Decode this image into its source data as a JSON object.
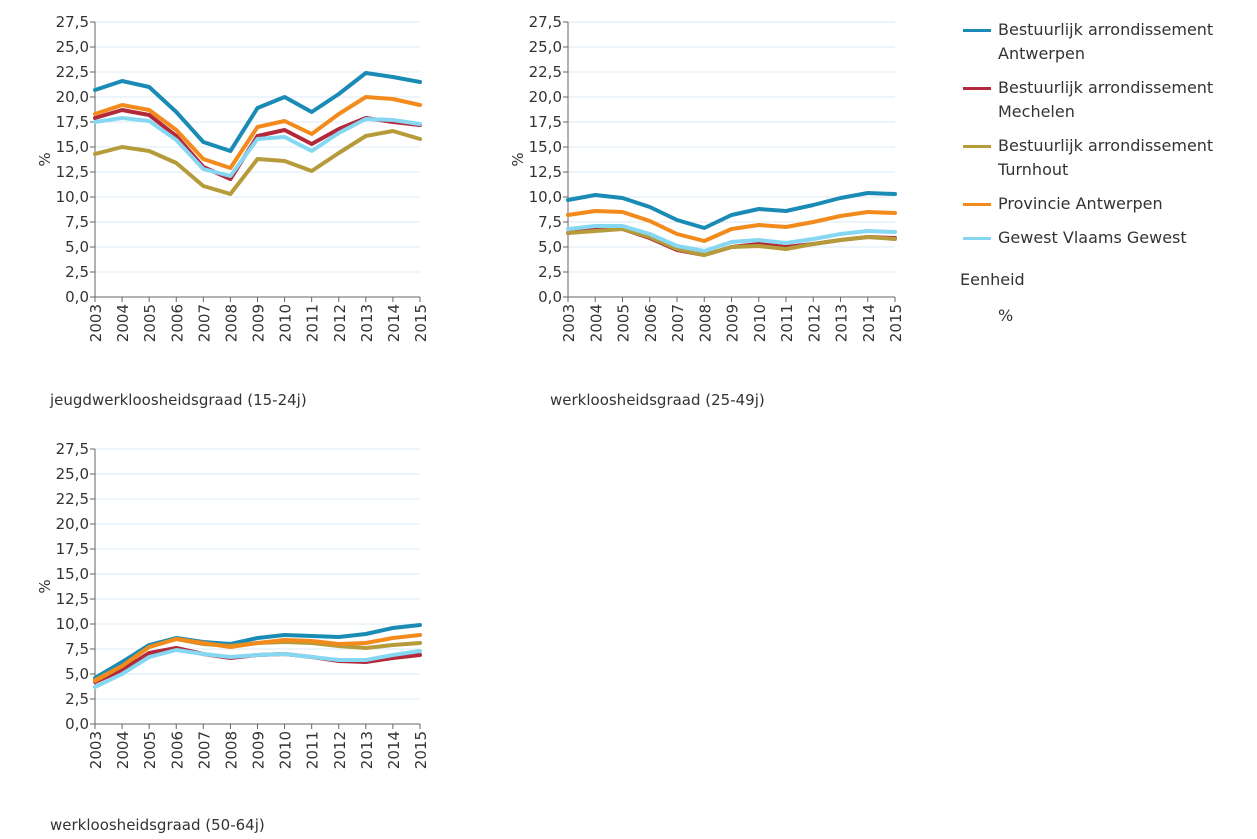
{
  "legend": {
    "series": [
      {
        "name": "Bestuurlijk arrondissement Antwerpen",
        "color": "#1a8bb5"
      },
      {
        "name": "Bestuurlijk arrondissement Mechelen",
        "color": "#b3283a"
      },
      {
        "name": "Bestuurlijk arrondissement Turnhout",
        "color": "#b59b3a"
      },
      {
        "name": "Provincie Antwerpen",
        "color": "#f28a1c"
      },
      {
        "name": "Gewest Vlaams Gewest",
        "color": "#86d8f2"
      }
    ],
    "unit_title": "Eenheid",
    "unit": "%"
  },
  "chart_data": [
    {
      "type": "line",
      "title": "jeugdwerkloosheidsgraad (15-24j)",
      "ylabel": "%",
      "categories": [
        "2003",
        "2004",
        "2005",
        "2006",
        "2007",
        "2008",
        "2009",
        "2010",
        "2011",
        "2012",
        "2013",
        "2014",
        "2015"
      ],
      "ylim": [
        0,
        27.5
      ],
      "yticks": [
        {
          "value": 0,
          "label": "0,0"
        },
        {
          "value": 2.5,
          "label": "2,5"
        },
        {
          "value": 5,
          "label": "5,0"
        },
        {
          "value": 7.5,
          "label": "7,5"
        },
        {
          "value": 10,
          "label": "10,0"
        },
        {
          "value": 12.5,
          "label": "12,5"
        },
        {
          "value": 15,
          "label": "15,0"
        },
        {
          "value": 17.5,
          "label": "17,5"
        },
        {
          "value": 20,
          "label": "20,0"
        },
        {
          "value": 22.5,
          "label": "22,5"
        },
        {
          "value": 25,
          "label": "25,0"
        },
        {
          "value": 27.5,
          "label": "27,5"
        }
      ],
      "grid": true,
      "series": [
        {
          "values": [
            20.7,
            21.6,
            21.0,
            18.5,
            15.5,
            14.6,
            18.9,
            20.0,
            18.5,
            20.3,
            22.4,
            22.0,
            21.5
          ]
        },
        {
          "values": [
            17.9,
            18.7,
            18.2,
            16.1,
            13.0,
            11.8,
            16.1,
            16.7,
            15.3,
            16.8,
            17.9,
            17.5,
            17.2
          ]
        },
        {
          "values": [
            14.3,
            15.0,
            14.6,
            13.4,
            11.1,
            10.3,
            13.8,
            13.6,
            12.6,
            14.4,
            16.1,
            16.6,
            15.8
          ]
        },
        {
          "values": [
            18.3,
            19.2,
            18.7,
            16.7,
            13.8,
            12.9,
            17.0,
            17.6,
            16.3,
            18.3,
            20.0,
            19.8,
            19.2
          ]
        },
        {
          "values": [
            17.5,
            17.9,
            17.6,
            15.7,
            12.8,
            12.1,
            15.8,
            16.0,
            14.6,
            16.4,
            17.8,
            17.7,
            17.3
          ]
        }
      ]
    },
    {
      "type": "line",
      "title": "werkloosheidsgraad (25-49j)",
      "ylabel": "%",
      "categories": [
        "2003",
        "2004",
        "2005",
        "2006",
        "2007",
        "2008",
        "2009",
        "2010",
        "2011",
        "2012",
        "2013",
        "2014",
        "2015"
      ],
      "ylim": [
        0,
        27.5
      ],
      "yticks": [
        {
          "value": 0,
          "label": "0,0"
        },
        {
          "value": 2.5,
          "label": "2,5"
        },
        {
          "value": 5,
          "label": "5,0"
        },
        {
          "value": 7.5,
          "label": "7,5"
        },
        {
          "value": 10,
          "label": "10,0"
        },
        {
          "value": 12.5,
          "label": "12,5"
        },
        {
          "value": 15,
          "label": "15,0"
        },
        {
          "value": 17.5,
          "label": "17,5"
        },
        {
          "value": 20,
          "label": "20,0"
        },
        {
          "value": 22.5,
          "label": "22,5"
        },
        {
          "value": 25,
          "label": "25,0"
        },
        {
          "value": 27.5,
          "label": "27,5"
        }
      ],
      "grid": true,
      "series": [
        {
          "values": [
            9.7,
            10.2,
            9.9,
            9.0,
            7.7,
            6.9,
            8.2,
            8.8,
            8.6,
            9.2,
            9.9,
            10.4,
            10.3
          ]
        },
        {
          "values": [
            6.4,
            6.8,
            6.8,
            5.9,
            4.7,
            4.2,
            5.0,
            5.3,
            5.0,
            5.3,
            5.7,
            6.0,
            5.9
          ]
        },
        {
          "values": [
            6.4,
            6.6,
            6.8,
            6.0,
            4.8,
            4.2,
            5.0,
            5.1,
            4.8,
            5.3,
            5.7,
            6.0,
            5.8
          ]
        },
        {
          "values": [
            8.2,
            8.6,
            8.5,
            7.6,
            6.3,
            5.6,
            6.8,
            7.2,
            7.0,
            7.5,
            8.1,
            8.5,
            8.4
          ]
        },
        {
          "values": [
            6.8,
            7.1,
            7.1,
            6.3,
            5.1,
            4.6,
            5.5,
            5.7,
            5.4,
            5.8,
            6.3,
            6.6,
            6.5
          ]
        }
      ]
    },
    {
      "type": "line",
      "title": "werkloosheidsgraad (50-64j)",
      "ylabel": "%",
      "categories": [
        "2003",
        "2004",
        "2005",
        "2006",
        "2007",
        "2008",
        "2009",
        "2010",
        "2011",
        "2012",
        "2013",
        "2014",
        "2015"
      ],
      "ylim": [
        0,
        27.5
      ],
      "yticks": [
        {
          "value": 0,
          "label": "0,0"
        },
        {
          "value": 2.5,
          "label": "2,5"
        },
        {
          "value": 5,
          "label": "5,0"
        },
        {
          "value": 7.5,
          "label": "7,5"
        },
        {
          "value": 10,
          "label": "10,0"
        },
        {
          "value": 12.5,
          "label": "12,5"
        },
        {
          "value": 15,
          "label": "15,0"
        },
        {
          "value": 17.5,
          "label": "17,5"
        },
        {
          "value": 20,
          "label": "20,0"
        },
        {
          "value": 22.5,
          "label": "22,5"
        },
        {
          "value": 25,
          "label": "25,0"
        },
        {
          "value": 27.5,
          "label": "27,5"
        }
      ],
      "grid": true,
      "series": [
        {
          "values": [
            4.6,
            6.2,
            7.9,
            8.6,
            8.2,
            8.0,
            8.6,
            8.9,
            8.8,
            8.7,
            9.0,
            9.6,
            9.9
          ]
        },
        {
          "values": [
            4.2,
            5.4,
            7.1,
            7.6,
            7.0,
            6.6,
            6.9,
            7.0,
            6.7,
            6.3,
            6.2,
            6.6,
            6.9
          ]
        },
        {
          "values": [
            4.4,
            5.8,
            7.7,
            8.5,
            8.0,
            7.8,
            8.1,
            8.2,
            8.1,
            7.8,
            7.6,
            7.9,
            8.1
          ]
        },
        {
          "values": [
            4.3,
            5.8,
            7.7,
            8.5,
            8.1,
            7.7,
            8.1,
            8.4,
            8.3,
            8.0,
            8.1,
            8.6,
            8.9
          ]
        },
        {
          "values": [
            3.7,
            5.0,
            6.7,
            7.4,
            7.0,
            6.7,
            6.9,
            7.0,
            6.7,
            6.4,
            6.4,
            6.9,
            7.3
          ]
        }
      ]
    }
  ]
}
